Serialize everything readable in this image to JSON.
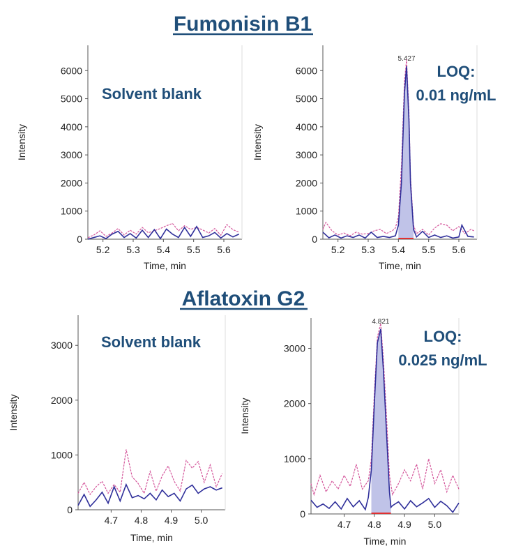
{
  "sections": [
    {
      "title": "Fumonisin B1",
      "accent": "#1f4e79"
    },
    {
      "title": "Aflatoxin G2",
      "accent": "#1f4e79"
    }
  ],
  "colors": {
    "blue_trace": "#2f2f9a",
    "pink_trace": "#d4569b",
    "peak_fill": "#b9bde6",
    "baseline": "#e03030",
    "axis": "#555555"
  },
  "chart_data": [
    {
      "type": "line",
      "xlabel": "Time, min",
      "ylabel": "Intensity",
      "xlim": [
        5.15,
        5.66
      ],
      "ylim": [
        0,
        6900
      ],
      "xticks": [
        "5.2",
        "5.3",
        "5.4",
        "5.5",
        "5.6"
      ],
      "yticks": [
        "0",
        "1000",
        "2000",
        "3000",
        "4000",
        "5000",
        "6000"
      ],
      "annotation": [
        "Solvent blank"
      ],
      "peak": null,
      "series": [
        {
          "x": [
            5.15,
            5.17,
            5.19,
            5.21,
            5.23,
            5.25,
            5.27,
            5.29,
            5.31,
            5.33,
            5.35,
            5.37,
            5.39,
            5.41,
            5.43,
            5.45,
            5.47,
            5.49,
            5.51,
            5.53,
            5.55,
            5.57,
            5.59,
            5.61,
            5.63,
            5.65
          ],
          "y": [
            0,
            60,
            120,
            20,
            180,
            280,
            60,
            200,
            40,
            320,
            60,
            340,
            20,
            360,
            180,
            60,
            420,
            100,
            450,
            60,
            120,
            240,
            40,
            200,
            80,
            180
          ]
        },
        {
          "x": [
            5.15,
            5.17,
            5.19,
            5.21,
            5.23,
            5.25,
            5.27,
            5.29,
            5.31,
            5.33,
            5.35,
            5.37,
            5.39,
            5.41,
            5.43,
            5.45,
            5.47,
            5.49,
            5.51,
            5.53,
            5.55,
            5.57,
            5.59,
            5.61,
            5.63,
            5.65
          ],
          "y": [
            50,
            150,
            300,
            100,
            220,
            380,
            150,
            320,
            180,
            420,
            230,
            300,
            380,
            480,
            560,
            300,
            480,
            350,
            420,
            330,
            220,
            380,
            140,
            520,
            340,
            250
          ]
        }
      ]
    },
    {
      "type": "line",
      "xlabel": "Time, min",
      "ylabel": "Intensity",
      "xlim": [
        5.15,
        5.66
      ],
      "ylim": [
        0,
        6900
      ],
      "xticks": [
        "5.2",
        "5.3",
        "5.4",
        "5.5",
        "5.6"
      ],
      "yticks": [
        "0",
        "1000",
        "2000",
        "3000",
        "4000",
        "5000",
        "6000"
      ],
      "annotation": [
        "LOQ:",
        "0.01 ng/mL"
      ],
      "peak": {
        "label": "5.427",
        "x": 5.427,
        "y": 6150,
        "from": 5.4,
        "to": 5.45
      },
      "series": [
        {
          "x": [
            5.15,
            5.17,
            5.19,
            5.21,
            5.23,
            5.25,
            5.27,
            5.29,
            5.31,
            5.33,
            5.35,
            5.37,
            5.39,
            5.4,
            5.41,
            5.42,
            5.427,
            5.435,
            5.44,
            5.45,
            5.46,
            5.48,
            5.5,
            5.52,
            5.54,
            5.56,
            5.58,
            5.6,
            5.61,
            5.63,
            5.65
          ],
          "y": [
            250,
            50,
            150,
            40,
            120,
            60,
            150,
            40,
            250,
            60,
            100,
            60,
            120,
            500,
            2000,
            5200,
            6150,
            4200,
            2000,
            350,
            80,
            280,
            60,
            150,
            60,
            120,
            40,
            80,
            500,
            100,
            80
          ]
        },
        {
          "x": [
            5.15,
            5.16,
            5.18,
            5.2,
            5.22,
            5.24,
            5.26,
            5.28,
            5.3,
            5.32,
            5.34,
            5.36,
            5.38,
            5.39,
            5.4,
            5.41,
            5.42,
            5.427,
            5.435,
            5.44,
            5.45,
            5.46,
            5.48,
            5.5,
            5.52,
            5.54,
            5.56,
            5.58,
            5.6,
            5.62,
            5.64,
            5.65
          ],
          "y": [
            350,
            600,
            300,
            150,
            220,
            120,
            250,
            180,
            200,
            300,
            350,
            200,
            300,
            400,
            800,
            2600,
            5600,
            6400,
            4500,
            2200,
            500,
            200,
            350,
            150,
            400,
            550,
            500,
            300,
            450,
            200,
            350,
            300
          ]
        }
      ]
    },
    {
      "type": "line",
      "xlabel": "Time, min",
      "ylabel": "Intensity",
      "xlim": [
        4.59,
        5.08
      ],
      "ylim": [
        0,
        3550
      ],
      "xticks": [
        "4.7",
        "4.8",
        "4.9",
        "5.0"
      ],
      "yticks": [
        "0",
        "1000",
        "2000",
        "3000"
      ],
      "annotation": [
        "Solvent blank"
      ],
      "peak": null,
      "series": [
        {
          "x": [
            4.59,
            4.61,
            4.63,
            4.65,
            4.67,
            4.69,
            4.71,
            4.73,
            4.75,
            4.77,
            4.79,
            4.81,
            4.83,
            4.85,
            4.87,
            4.89,
            4.91,
            4.93,
            4.95,
            4.97,
            4.99,
            5.01,
            5.03,
            5.05,
            5.07
          ],
          "y": [
            80,
            280,
            60,
            180,
            320,
            120,
            420,
            160,
            460,
            220,
            260,
            200,
            300,
            180,
            360,
            240,
            300,
            160,
            380,
            450,
            300,
            380,
            420,
            360,
            400
          ]
        },
        {
          "x": [
            4.59,
            4.61,
            4.63,
            4.65,
            4.67,
            4.69,
            4.71,
            4.73,
            4.75,
            4.77,
            4.79,
            4.81,
            4.83,
            4.85,
            4.87,
            4.89,
            4.91,
            4.93,
            4.95,
            4.97,
            4.99,
            5.01,
            5.03,
            5.05,
            5.07
          ],
          "y": [
            300,
            500,
            280,
            420,
            520,
            300,
            460,
            320,
            1100,
            600,
            480,
            300,
            700,
            340,
            620,
            800,
            520,
            340,
            900,
            760,
            880,
            500,
            820,
            420,
            660
          ]
        }
      ]
    },
    {
      "type": "line",
      "xlabel": "Time, min",
      "ylabel": "Intensity",
      "xlim": [
        4.59,
        5.08
      ],
      "ylim": [
        0,
        3550
      ],
      "xticks": [
        "4.7",
        "4.8",
        "4.9",
        "5.0"
      ],
      "yticks": [
        "0",
        "1000",
        "2000",
        "3000"
      ],
      "annotation": [
        "LOQ:",
        "0.025 ng/mL"
      ],
      "peak": {
        "label": "4.821",
        "x": 4.821,
        "y": 3350,
        "from": 4.79,
        "to": 4.855
      },
      "series": [
        {
          "x": [
            4.59,
            4.61,
            4.63,
            4.65,
            4.67,
            4.69,
            4.71,
            4.73,
            4.75,
            4.77,
            4.78,
            4.79,
            4.8,
            4.81,
            4.821,
            4.83,
            4.84,
            4.85,
            4.855,
            4.86,
            4.88,
            4.9,
            4.92,
            4.94,
            4.96,
            4.98,
            5.0,
            5.02,
            5.04,
            5.06,
            5.08
          ],
          "y": [
            250,
            120,
            180,
            100,
            220,
            90,
            280,
            130,
            240,
            80,
            300,
            800,
            2000,
            3100,
            3350,
            2600,
            1500,
            400,
            120,
            150,
            220,
            90,
            240,
            130,
            200,
            280,
            120,
            230,
            150,
            30,
            200
          ]
        },
        {
          "x": [
            4.59,
            4.6,
            4.62,
            4.64,
            4.66,
            4.68,
            4.7,
            4.72,
            4.74,
            4.76,
            4.78,
            4.79,
            4.8,
            4.81,
            4.821,
            4.83,
            4.84,
            4.85,
            4.86,
            4.88,
            4.9,
            4.92,
            4.94,
            4.96,
            4.98,
            5.0,
            5.02,
            5.04,
            5.06,
            5.08
          ],
          "y": [
            550,
            350,
            700,
            400,
            600,
            450,
            700,
            500,
            900,
            450,
            600,
            1000,
            2200,
            3200,
            3450,
            2800,
            1800,
            700,
            350,
            550,
            800,
            600,
            900,
            450,
            1000,
            550,
            800,
            400,
            700,
            450
          ]
        }
      ]
    }
  ]
}
